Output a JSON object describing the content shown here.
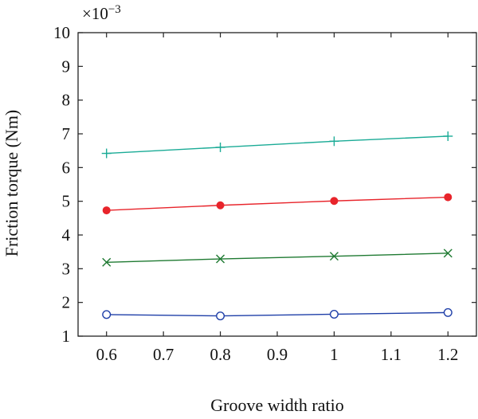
{
  "chart_data": {
    "type": "line",
    "xlabel": "Groove width ratio",
    "ylabel": "Friction torque (Nm)",
    "y_multiplier_base": "×10",
    "y_multiplier_exp": "−3",
    "x": [
      0.6,
      0.8,
      1.0,
      1.2
    ],
    "xlim": [
      0.55,
      1.25
    ],
    "ylim": [
      1,
      10
    ],
    "xticks": [
      0.6,
      0.7,
      0.8,
      0.9,
      1.0,
      1.1,
      1.2
    ],
    "xtick_labels": [
      "0.6",
      "0.7",
      "0.8",
      "0.9",
      "1",
      "1.1",
      "1.2"
    ],
    "yticks": [
      1,
      2,
      3,
      4,
      5,
      6,
      7,
      8,
      9,
      10
    ],
    "ytick_labels": [
      "1",
      "2",
      "3",
      "4",
      "5",
      "6",
      "7",
      "8",
      "9",
      "10"
    ],
    "grid": false,
    "legend": "none",
    "series": [
      {
        "values": [
          6.42,
          6.6,
          6.78,
          6.93
        ],
        "color": "#1aab96",
        "marker": "plus"
      },
      {
        "values": [
          4.73,
          4.88,
          5.01,
          5.12
        ],
        "color": "#e8242b",
        "marker": "filled-circle"
      },
      {
        "values": [
          3.19,
          3.29,
          3.37,
          3.46
        ],
        "color": "#1f7a32",
        "marker": "cross"
      },
      {
        "values": [
          1.64,
          1.6,
          1.65,
          1.7
        ],
        "color": "#1f3fa8",
        "marker": "open-circle"
      }
    ]
  }
}
